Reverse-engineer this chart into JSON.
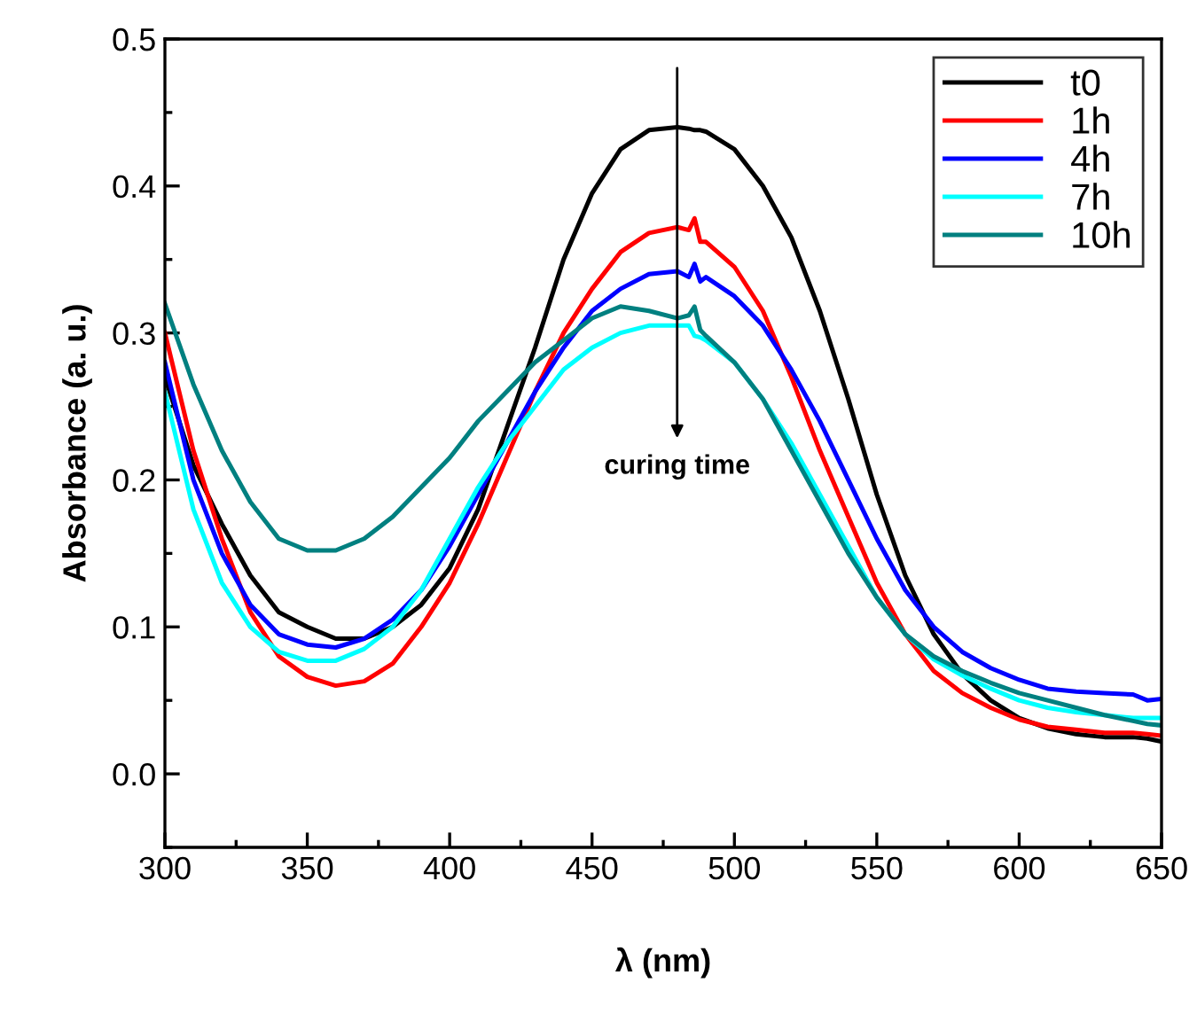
{
  "chart_data": {
    "type": "line",
    "xlabel": "λ (nm)",
    "ylabel": "Absorbance (a. u.)",
    "x": [
      300,
      310,
      320,
      330,
      340,
      350,
      360,
      370,
      380,
      390,
      400,
      410,
      420,
      430,
      440,
      450,
      460,
      470,
      480,
      484,
      486,
      488,
      490,
      500,
      510,
      520,
      530,
      540,
      550,
      560,
      570,
      580,
      590,
      600,
      610,
      620,
      630,
      640,
      645,
      650
    ],
    "series": [
      {
        "name": "t0",
        "color": "#000000",
        "values": [
          0.27,
          0.21,
          0.17,
          0.135,
          0.11,
          0.1,
          0.092,
          0.092,
          0.1,
          0.115,
          0.14,
          0.18,
          0.235,
          0.29,
          0.35,
          0.395,
          0.425,
          0.438,
          0.44,
          0.439,
          0.438,
          0.438,
          0.437,
          0.425,
          0.4,
          0.365,
          0.315,
          0.255,
          0.19,
          0.135,
          0.095,
          0.068,
          0.05,
          0.038,
          0.031,
          0.027,
          0.025,
          0.025,
          0.024,
          0.022
        ]
      },
      {
        "name": "1h",
        "color": "#ff0000",
        "values": [
          0.3,
          0.22,
          0.16,
          0.11,
          0.08,
          0.066,
          0.06,
          0.063,
          0.075,
          0.1,
          0.13,
          0.17,
          0.215,
          0.26,
          0.3,
          0.33,
          0.355,
          0.368,
          0.372,
          0.37,
          0.378,
          0.362,
          0.362,
          0.345,
          0.315,
          0.27,
          0.22,
          0.175,
          0.13,
          0.095,
          0.07,
          0.055,
          0.045,
          0.037,
          0.032,
          0.03,
          0.028,
          0.028,
          0.027,
          0.026
        ]
      },
      {
        "name": "4h",
        "color": "#0000ff",
        "values": [
          0.28,
          0.2,
          0.15,
          0.115,
          0.095,
          0.088,
          0.086,
          0.092,
          0.105,
          0.125,
          0.155,
          0.19,
          0.225,
          0.26,
          0.29,
          0.315,
          0.33,
          0.34,
          0.342,
          0.338,
          0.347,
          0.335,
          0.338,
          0.325,
          0.305,
          0.275,
          0.24,
          0.2,
          0.16,
          0.125,
          0.1,
          0.083,
          0.072,
          0.064,
          0.058,
          0.056,
          0.055,
          0.054,
          0.05,
          0.051
        ]
      },
      {
        "name": "7h",
        "color": "#00ffff",
        "values": [
          0.26,
          0.18,
          0.13,
          0.1,
          0.083,
          0.077,
          0.077,
          0.085,
          0.1,
          0.125,
          0.16,
          0.195,
          0.225,
          0.25,
          0.275,
          0.29,
          0.3,
          0.305,
          0.305,
          0.305,
          0.298,
          0.297,
          0.295,
          0.28,
          0.255,
          0.225,
          0.19,
          0.155,
          0.12,
          0.095,
          0.078,
          0.067,
          0.058,
          0.05,
          0.045,
          0.042,
          0.04,
          0.038,
          0.038,
          0.038
        ]
      },
      {
        "name": "10h",
        "color": "#008080",
        "values": [
          0.32,
          0.265,
          0.22,
          0.185,
          0.16,
          0.152,
          0.152,
          0.16,
          0.175,
          0.195,
          0.215,
          0.24,
          0.26,
          0.28,
          0.295,
          0.31,
          0.318,
          0.315,
          0.31,
          0.312,
          0.318,
          0.302,
          0.298,
          0.28,
          0.255,
          0.22,
          0.185,
          0.15,
          0.12,
          0.095,
          0.08,
          0.07,
          0.062,
          0.055,
          0.05,
          0.045,
          0.04,
          0.036,
          0.034,
          0.033
        ]
      }
    ],
    "xlim": [
      300,
      650
    ],
    "xticks": [
      300,
      350,
      400,
      450,
      500,
      550,
      600,
      650
    ],
    "ylim": [
      -0.05,
      0.5
    ],
    "yticks": [
      "0.0",
      0.1,
      0.2,
      0.3,
      0.4,
      0.5
    ],
    "annotations": [
      "curing time"
    ],
    "legend": "top right",
    "grid": false,
    "marker": "none",
    "line_style": "solid"
  }
}
